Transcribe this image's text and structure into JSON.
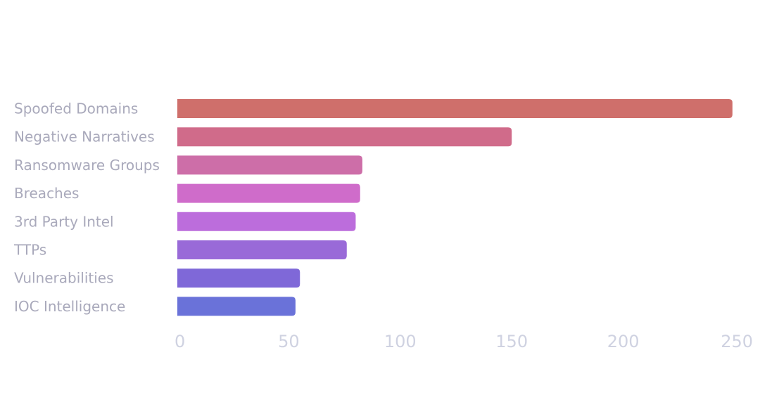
{
  "chart_data": {
    "type": "bar",
    "orientation": "horizontal",
    "categories": [
      "Spoofed Domains",
      "Negative Narratives",
      "Ransomware Groups",
      "Breaches",
      "3rd Party Intel",
      "TTPs",
      "Vulnerabilities",
      "IOC Intelligence"
    ],
    "values": [
      249,
      150,
      83,
      82,
      80,
      76,
      55,
      53
    ],
    "colors": [
      "#cf6f6b",
      "#d06b8a",
      "#cd6ea8",
      "#cf6cca",
      "#bc6ddc",
      "#996ad8",
      "#7f68d8",
      "#6a72d9"
    ],
    "xlim": [
      0,
      250
    ],
    "xticks": [
      "0",
      "50",
      "100",
      "150",
      "200",
      "250"
    ],
    "xlabel": "",
    "ylabel": "",
    "title": "",
    "grid": false
  }
}
